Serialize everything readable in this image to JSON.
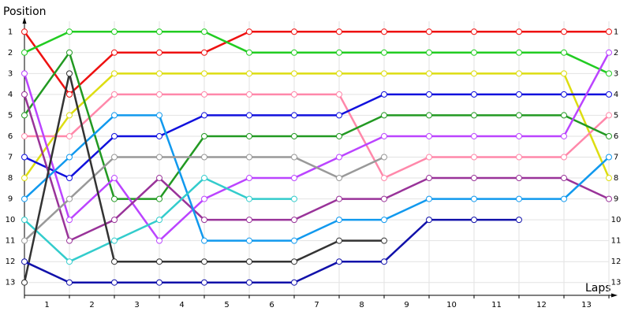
{
  "chart_data": {
    "type": "lap",
    "y_label": "Position",
    "x_label": "Laps",
    "x": [
      0,
      1,
      2,
      3,
      4,
      5,
      6,
      7,
      8,
      9,
      10,
      11,
      12,
      13
    ],
    "xlim": [
      0,
      13
    ],
    "xticks": [
      {
        "value": 0.5,
        "label": "1"
      },
      {
        "value": 1.5,
        "label": "2"
      },
      {
        "value": 2.5,
        "label": "3"
      },
      {
        "value": 3.5,
        "label": "4"
      },
      {
        "value": 4.5,
        "label": "5"
      },
      {
        "value": 5.5,
        "label": "6"
      },
      {
        "value": 6.5,
        "label": "7"
      },
      {
        "value": 7.5,
        "label": "8"
      },
      {
        "value": 8.5,
        "label": "9"
      },
      {
        "value": 9.5,
        "label": "10"
      },
      {
        "value": 10.5,
        "label": "11"
      },
      {
        "value": 11.5,
        "label": "12"
      },
      {
        "value": 12.5,
        "label": "13"
      }
    ],
    "ylim": [
      0.5,
      13.5
    ],
    "y_inverted": true,
    "yticks": [
      1,
      2,
      3,
      4,
      5,
      6,
      7,
      8,
      9,
      10,
      11,
      12,
      13
    ],
    "grid": true,
    "series": [
      {
        "color": "#ee1111",
        "values": [
          1,
          4,
          2,
          2,
          2,
          1,
          1,
          1,
          1,
          1,
          1,
          1,
          1,
          1
        ]
      },
      {
        "color": "#22cc22",
        "values": [
          2,
          1,
          1,
          1,
          1,
          2,
          2,
          2,
          2,
          2,
          2,
          2,
          2,
          3
        ]
      },
      {
        "color": "#dddd11",
        "values": [
          8,
          5,
          3,
          3,
          3,
          3,
          3,
          3,
          3,
          3,
          3,
          3,
          3,
          8
        ]
      },
      {
        "color": "#ff88aa",
        "values": [
          6,
          6,
          4,
          4,
          4,
          4,
          4,
          4,
          8,
          7,
          7,
          7,
          7,
          5
        ]
      },
      {
        "color": "#1111dd",
        "values": [
          7,
          8,
          6,
          6,
          5,
          5,
          5,
          5,
          4,
          4,
          4,
          4,
          4,
          4
        ]
      },
      {
        "color": "#229922",
        "values": [
          5,
          2,
          9,
          9,
          6,
          6,
          6,
          6,
          5,
          5,
          5,
          5,
          5,
          6
        ]
      },
      {
        "color": "#bb44ff",
        "values": [
          3,
          10,
          8,
          11,
          9,
          8,
          8,
          7,
          6,
          6,
          6,
          6,
          6,
          2
        ]
      },
      {
        "color": "#993399",
        "values": [
          4,
          11,
          10,
          8,
          10,
          10,
          10,
          9,
          9,
          8,
          8,
          8,
          8,
          9
        ]
      },
      {
        "color": "#1199ee",
        "values": [
          9,
          7,
          5,
          5,
          11,
          11,
          11,
          10,
          10,
          9,
          9,
          9,
          9,
          7
        ]
      },
      {
        "color": "#999999",
        "values": [
          11,
          9,
          7,
          7,
          7,
          7,
          7,
          8,
          7,
          null,
          null,
          null,
          null,
          null
        ]
      },
      {
        "color": "#33cccc",
        "values": [
          10,
          12,
          11,
          10,
          8,
          9,
          9,
          null,
          null,
          null,
          null,
          null,
          null,
          null
        ]
      },
      {
        "color": "#333333",
        "values": [
          13,
          3,
          12,
          12,
          12,
          12,
          12,
          11,
          11,
          null,
          null,
          null,
          null,
          null
        ]
      },
      {
        "color": "#1111aa",
        "values": [
          12,
          13,
          13,
          13,
          13,
          13,
          13,
          12,
          12,
          10,
          10,
          10,
          null,
          null
        ]
      }
    ]
  }
}
